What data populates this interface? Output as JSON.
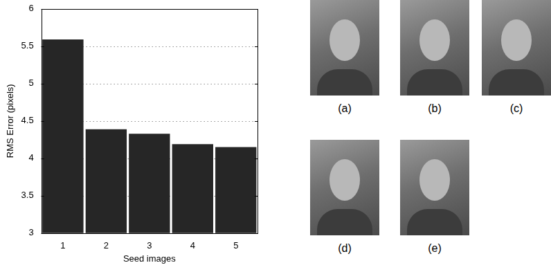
{
  "chart_data": {
    "type": "bar",
    "categories": [
      "1",
      "2",
      "3",
      "4",
      "5"
    ],
    "values": [
      5.59,
      4.39,
      4.33,
      4.19,
      4.15
    ],
    "color": "#262626",
    "x_label": "Seed images",
    "y_label": "RMS Error (pixels)",
    "ylim": [
      3,
      6
    ],
    "yticks": [
      3,
      3.5,
      4,
      4.5,
      5,
      5.5,
      6
    ],
    "grid": true
  },
  "image_panels": [
    {
      "label": "(a)"
    },
    {
      "label": "(b)"
    },
    {
      "label": "(c)"
    },
    {
      "label": "(d)"
    },
    {
      "label": "(e)"
    }
  ]
}
